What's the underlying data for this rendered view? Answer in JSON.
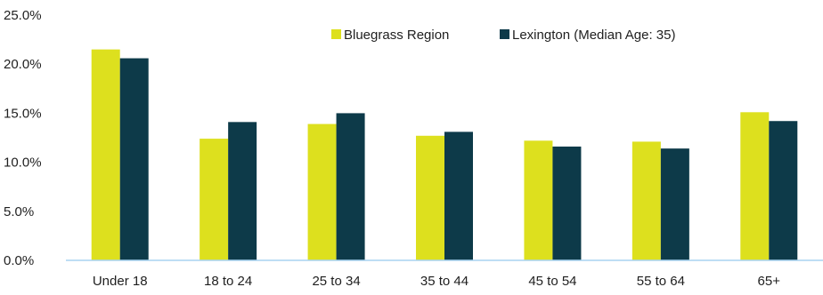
{
  "chart_data": {
    "type": "bar",
    "title": "",
    "xlabel": "",
    "ylabel": "",
    "categories": [
      "Under 18",
      "18 to 24",
      "25 to 34",
      "35 to 44",
      "45 to 54",
      "55 to 64",
      "65+"
    ],
    "series": [
      {
        "name": "Bluegrass Region",
        "color": "#dde01e",
        "values": [
          21.5,
          12.4,
          13.9,
          12.7,
          12.2,
          12.1,
          15.1
        ]
      },
      {
        "name": "Lexington (Median Age: 35)",
        "color": "#0d3a49",
        "values": [
          20.6,
          14.1,
          15.0,
          13.1,
          11.6,
          11.4,
          14.2
        ]
      }
    ],
    "ylim": [
      0,
      25
    ],
    "y_ticks": [
      0,
      5,
      10,
      15,
      20,
      25
    ],
    "y_tick_labels": [
      "0.0%",
      "5.0%",
      "10.0%",
      "15.0%",
      "20.0%",
      "25.0%"
    ],
    "grid": false,
    "legend_position": "top-right"
  },
  "colors": {
    "axis_line": "#a9d3f0",
    "text": "#1f1f1f"
  }
}
